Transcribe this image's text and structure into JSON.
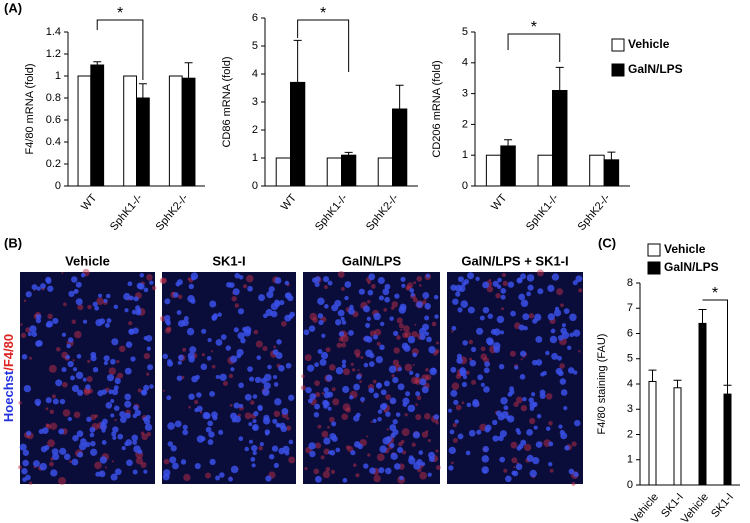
{
  "panel_labels": [
    "(A)",
    "(B)",
    "(C)"
  ],
  "images": {
    "stain_label": [
      "Hoechst",
      "/F4/80"
    ],
    "titles": [
      "Vehicle",
      "SK1-I",
      "GalN/LPS",
      "GalN/LPS + SK1-I"
    ]
  },
  "chart_data": [
    {
      "type": "bar",
      "ylabel": "F4/80 mRNA (fold)",
      "categories": [
        "WT",
        "SphK1-/-",
        "SphK2-/-"
      ],
      "series": [
        {
          "color": "#ffffff",
          "values": [
            1,
            1,
            1
          ]
        },
        {
          "color": "#000000",
          "values": [
            1.1,
            0.8,
            0.98
          ],
          "errors": [
            0.03,
            0.13,
            0.14
          ]
        }
      ],
      "ylim": [
        0,
        1.4
      ],
      "yticks": [
        0,
        0.2,
        0.4,
        0.6,
        0.8,
        1,
        1.2,
        1.4
      ],
      "annotations": [
        "*"
      ]
    },
    {
      "type": "bar",
      "ylabel": "CD86 mRNA (fold)",
      "categories": [
        "WT",
        "SphK1-/-",
        "SphK2-/-"
      ],
      "series": [
        {
          "color": "#ffffff",
          "values": [
            1,
            1,
            1
          ]
        },
        {
          "color": "#000000",
          "values": [
            3.7,
            1.1,
            2.75
          ],
          "errors": [
            1.5,
            0.1,
            0.85
          ]
        }
      ],
      "ylim": [
        0,
        6
      ],
      "yticks": [
        0,
        1,
        2,
        3,
        4,
        5,
        6
      ],
      "annotations": [
        "*"
      ]
    },
    {
      "type": "bar",
      "ylabel": "CD206 mRNA (fold)",
      "categories": [
        "WT",
        "SphK1-/-",
        "SphK2-/-"
      ],
      "series": [
        {
          "name": "Vehicle",
          "color": "#ffffff",
          "values": [
            1,
            1,
            1
          ]
        },
        {
          "name": "GalN/LPS",
          "color": "#000000",
          "values": [
            1.3,
            3.1,
            0.85
          ],
          "errors": [
            0.2,
            0.75,
            0.25
          ]
        }
      ],
      "ylim": [
        0,
        5
      ],
      "yticks": [
        0,
        1,
        2,
        3,
        4,
        5
      ],
      "annotations": [
        "*"
      ]
    },
    {
      "type": "bar",
      "ylabel": "F4/80 staining (FAU)",
      "categories": [
        "Vehicle",
        "SK1-I",
        "Vehicle",
        "SK1-I"
      ],
      "series": [
        {
          "name": "Vehicle",
          "color": "#ffffff",
          "values": [
            4.1,
            3.85,
            null,
            null
          ],
          "errors": [
            0.45,
            0.3,
            null,
            null
          ]
        },
        {
          "name": "GalN/LPS",
          "color": "#000000",
          "values": [
            null,
            null,
            6.4,
            3.6
          ],
          "errors": [
            null,
            null,
            0.55,
            0.35
          ]
        }
      ],
      "ylim": [
        0,
        8
      ],
      "yticks": [
        0,
        1,
        2,
        3,
        4,
        5,
        6,
        7,
        8
      ],
      "annotations": [
        "*"
      ]
    }
  ]
}
